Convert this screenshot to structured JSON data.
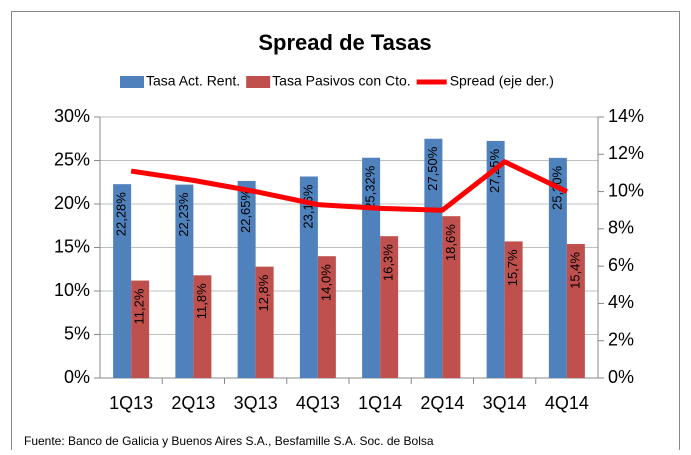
{
  "chart_data": {
    "type": "bar",
    "title": "Spread de Tasas",
    "categories": [
      "1Q13",
      "2Q13",
      "3Q13",
      "4Q13",
      "1Q14",
      "2Q14",
      "3Q14",
      "4Q14"
    ],
    "series": [
      {
        "name": "Tasa Act. Rent.",
        "color": "#4f81bd",
        "type": "bar",
        "values": [
          22.28,
          22.23,
          22.65,
          23.16,
          25.32,
          27.5,
          27.25,
          25.3
        ],
        "value_labels": [
          "22,28%",
          "22,23%",
          "22,65%",
          "23,16%",
          "25,32%",
          "27,50%",
          "27,25%",
          "25,30%"
        ]
      },
      {
        "name": "Tasa Pasivos con Cto.",
        "color": "#c0504d",
        "type": "bar",
        "values": [
          11.2,
          11.8,
          12.8,
          14.0,
          16.3,
          18.6,
          15.7,
          15.4
        ],
        "value_labels": [
          "11,2%",
          "11,8%",
          "12,8%",
          "14,0%",
          "16,3%",
          "18,6%",
          "15,7%",
          "15,4%"
        ]
      },
      {
        "name": "Spread (eje der.)",
        "color": "#ff0000",
        "type": "line",
        "axis": "y2",
        "values": [
          11.1,
          10.6,
          10.0,
          9.3,
          9.1,
          9.0,
          11.6,
          10.0
        ]
      }
    ],
    "ylim": [
      0,
      30
    ],
    "yticks": [
      {
        "value": 0,
        "label": "0%"
      },
      {
        "value": 5,
        "label": "5%"
      },
      {
        "value": 10,
        "label": "10%"
      },
      {
        "value": 15,
        "label": "15%"
      },
      {
        "value": 20,
        "label": "20%"
      },
      {
        "value": 25,
        "label": "25%"
      },
      {
        "value": 30,
        "label": "30%"
      }
    ],
    "y2lim": [
      0,
      14
    ],
    "y2ticks": [
      {
        "value": 0,
        "label": "0%"
      },
      {
        "value": 2,
        "label": "2%"
      },
      {
        "value": 4,
        "label": "4%"
      },
      {
        "value": 6,
        "label": "6%"
      },
      {
        "value": 8,
        "label": "8%"
      },
      {
        "value": 10,
        "label": "10%"
      },
      {
        "value": 12,
        "label": "12%"
      },
      {
        "value": 14,
        "label": "14%"
      }
    ],
    "grid": true,
    "legend": "top",
    "source": "Fuente: Banco de Galicia y Buenos Aires S.A., Besfamille S.A. Soc. de Bolsa"
  }
}
